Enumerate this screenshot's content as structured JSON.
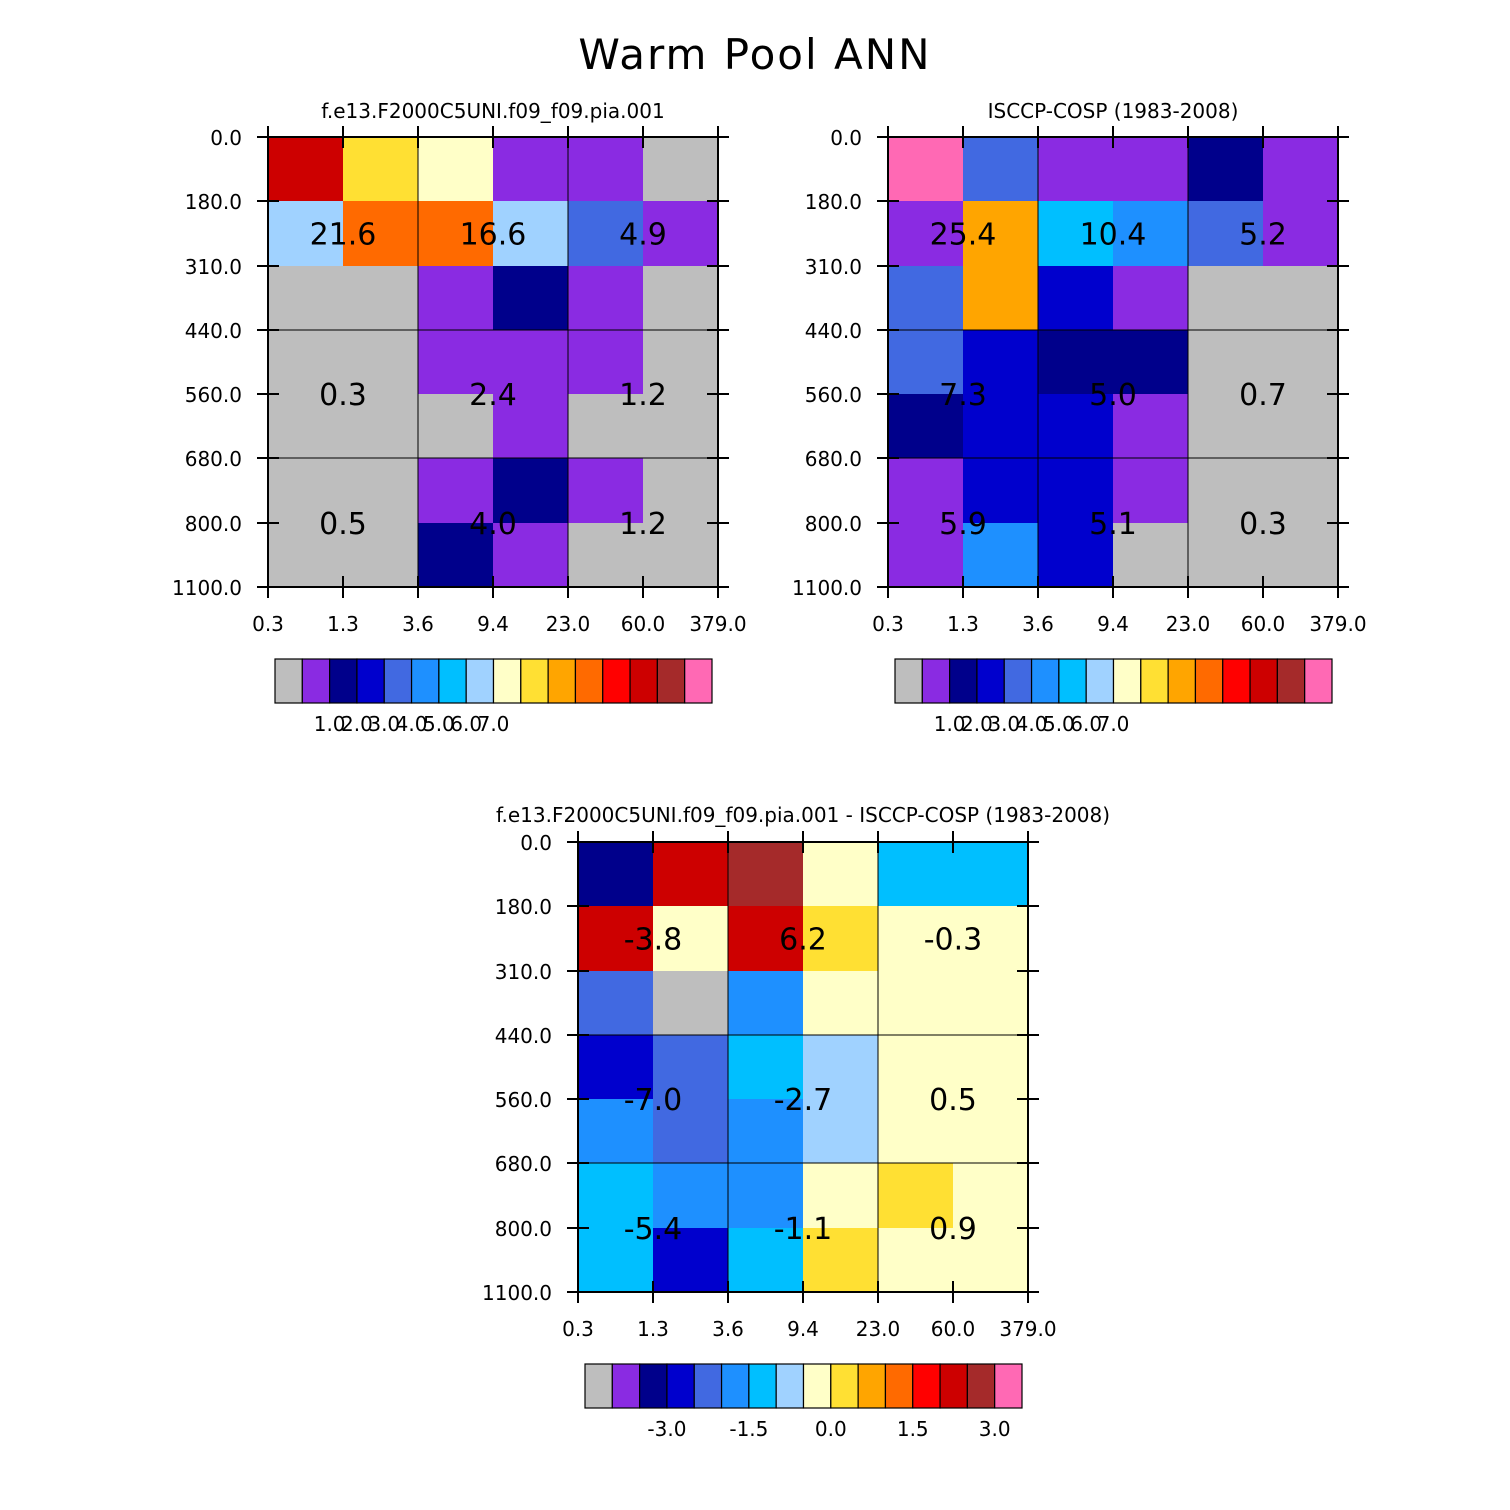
{
  "title": "Warm Pool ANN",
  "palette": [
    "#bebebe",
    "#8a2be2",
    "#00008b",
    "#0000cd",
    "#4169e1",
    "#1e90ff",
    "#00bfff",
    "#a0d2ff",
    "#ffffc8",
    "#ffe033",
    "#ffa500",
    "#ff6a00",
    "#ff0000",
    "#cd0000",
    "#a52a2a",
    "#ff69b4"
  ],
  "chart_data": [
    {
      "type": "heatmap",
      "title": "f.e13.F2000C5UNI.f09_f09.pia.001",
      "x_ticks": [
        "0.3",
        "1.3",
        "3.6",
        "9.4",
        "23.0",
        "60.0",
        "379.0"
      ],
      "y_ticks": [
        "0.0",
        "180.0",
        "310.0",
        "440.0",
        "560.0",
        "680.0",
        "800.0",
        "1100.0"
      ],
      "color_index": [
        [
          13,
          9,
          8,
          1,
          1,
          0
        ],
        [
          7,
          11,
          11,
          7,
          4,
          1
        ],
        [
          0,
          0,
          1,
          2,
          1,
          0
        ],
        [
          0,
          0,
          1,
          1,
          1,
          0
        ],
        [
          0,
          0,
          0,
          1,
          0,
          0
        ],
        [
          0,
          0,
          1,
          2,
          1,
          0
        ],
        [
          0,
          0,
          2,
          1,
          0,
          0
        ]
      ],
      "group_values": [
        [
          "21.6",
          "16.6",
          "4.9"
        ],
        [
          "0.3",
          "2.4",
          "1.2"
        ],
        [
          "0.5",
          "4.0",
          "1.2"
        ]
      ],
      "colorbar_labels": [
        "1.0",
        "2.0",
        "3.0",
        "4.0",
        "5.0",
        "6.0",
        "7.0"
      ]
    },
    {
      "type": "heatmap",
      "title": "ISCCP-COSP (1983-2008)",
      "x_ticks": [
        "0.3",
        "1.3",
        "3.6",
        "9.4",
        "23.0",
        "60.0",
        "379.0"
      ],
      "y_ticks": [
        "0.0",
        "180.0",
        "310.0",
        "440.0",
        "560.0",
        "680.0",
        "800.0",
        "1100.0"
      ],
      "color_index": [
        [
          15,
          4,
          1,
          1,
          2,
          1
        ],
        [
          1,
          10,
          6,
          5,
          4,
          1
        ],
        [
          4,
          10,
          3,
          1,
          0,
          0
        ],
        [
          4,
          3,
          2,
          2,
          0,
          0
        ],
        [
          2,
          3,
          3,
          1,
          0,
          0
        ],
        [
          1,
          3,
          3,
          1,
          0,
          0
        ],
        [
          1,
          5,
          3,
          0,
          0,
          0
        ]
      ],
      "group_values": [
        [
          "25.4",
          "10.4",
          "5.2"
        ],
        [
          "7.3",
          "5.0",
          "0.7"
        ],
        [
          "5.9",
          "5.1",
          "0.3"
        ]
      ],
      "colorbar_labels": [
        "1.0",
        "2.0",
        "3.0",
        "4.0",
        "5.0",
        "6.0",
        "7.0"
      ]
    },
    {
      "type": "heatmap",
      "title": "f.e13.F2000C5UNI.f09_f09.pia.001 - ISCCP-COSP (1983-2008)",
      "x_ticks": [
        "0.3",
        "1.3",
        "3.6",
        "9.4",
        "23.0",
        "60.0",
        "379.0"
      ],
      "y_ticks": [
        "0.0",
        "180.0",
        "310.0",
        "440.0",
        "560.0",
        "680.0",
        "800.0",
        "1100.0"
      ],
      "color_index": [
        [
          2,
          13,
          14,
          8,
          6,
          6
        ],
        [
          13,
          8,
          13,
          9,
          8,
          8
        ],
        [
          4,
          0,
          5,
          8,
          8,
          8
        ],
        [
          3,
          4,
          6,
          7,
          8,
          8
        ],
        [
          5,
          4,
          5,
          7,
          8,
          8
        ],
        [
          6,
          5,
          5,
          8,
          9,
          8
        ],
        [
          6,
          3,
          6,
          9,
          8,
          8
        ]
      ],
      "group_values": [
        [
          "-3.8",
          "6.2",
          "-0.3"
        ],
        [
          "-7.0",
          "-2.7",
          "0.5"
        ],
        [
          "-5.4",
          "-1.1",
          "0.9"
        ]
      ],
      "colorbar_labels": [
        "-3.0",
        "-1.5",
        "0.0",
        "1.5",
        "3.0"
      ]
    }
  ]
}
